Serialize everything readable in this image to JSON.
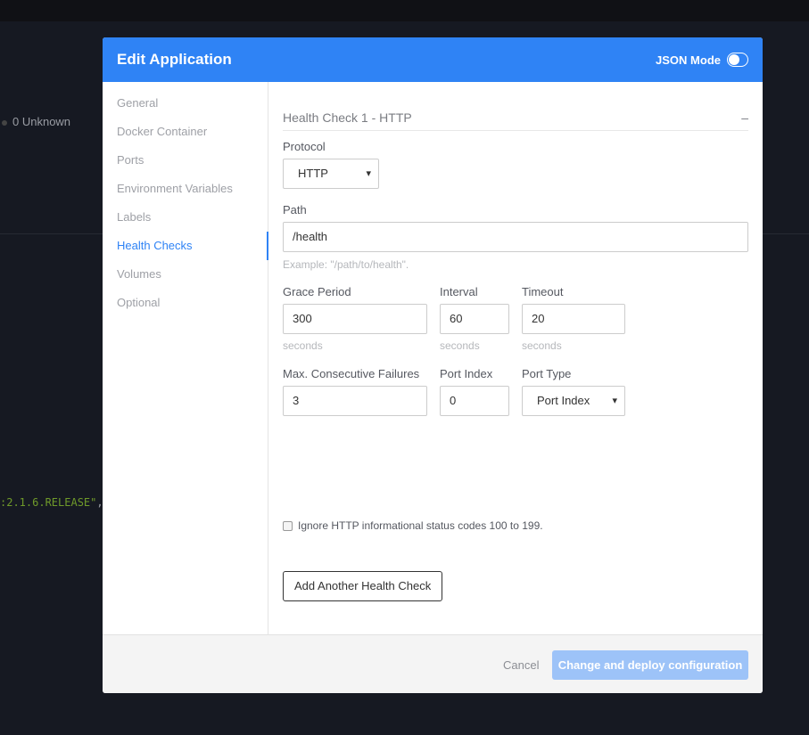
{
  "background": {
    "status": "0 Unknown",
    "code_value": ":2.1.6.RELEASE\"",
    "code_punct": ","
  },
  "modal": {
    "title": "Edit Application",
    "json_mode": "JSON Mode",
    "json_mode_on": false,
    "sidebar": [
      "General",
      "Docker Container",
      "Ports",
      "Environment Variables",
      "Labels",
      "Health Checks",
      "Volumes",
      "Optional"
    ],
    "active": "Health Checks",
    "health_check": {
      "title": "Health Check 1 - HTTP",
      "collapse": "–",
      "protocol_label": "Protocol",
      "protocol": "HTTP",
      "path_label": "Path",
      "path": "/health",
      "path_hint": "Example: \"/path/to/health\".",
      "grace_label": "Grace Period",
      "grace": "300",
      "interval_label": "Interval",
      "interval": "60",
      "timeout_label": "Timeout",
      "timeout": "20",
      "unit": "seconds",
      "failures_label": "Max. Consecutive Failures",
      "failures": "3",
      "port_index_label": "Port Index",
      "port_index": "0",
      "port_type_label": "Port Type",
      "port_type": "Port Index",
      "ignore_label": "Ignore HTTP informational status codes 100 to 199.",
      "ignore_checked": false
    },
    "add_button": "Add Another Health Check",
    "cancel": "Cancel",
    "deploy": "Change and deploy configuration"
  },
  "colors": {
    "accent": "#2f83f5",
    "deploy_disabled": "#9dc3f8"
  }
}
